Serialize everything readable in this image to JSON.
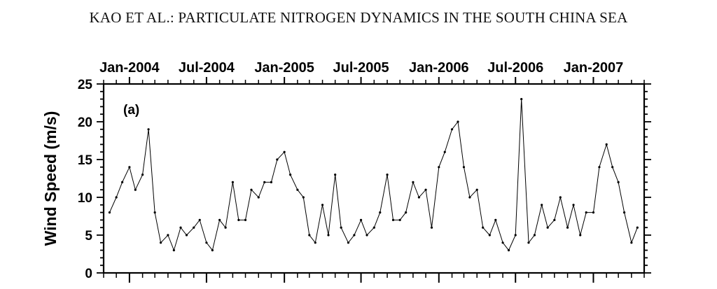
{
  "page_header": "KAO ET AL.: PARTICULATE NITROGEN DYNAMICS IN THE SOUTH CHINA SEA",
  "chart_data": {
    "type": "scatter",
    "panel_label": "(a)",
    "ylabel": "Wind Speed (m/s)",
    "ylim": [
      0,
      25
    ],
    "yticks": [
      0,
      5,
      10,
      15,
      20,
      25
    ],
    "xlim": [
      "2003-11-01",
      "2007-05-01"
    ],
    "top_tick_labels": [
      {
        "label": "Jan-2004",
        "date": "2004-01-01"
      },
      {
        "label": "Jul-2004",
        "date": "2004-07-01"
      },
      {
        "label": "Jan-2005",
        "date": "2005-01-01"
      },
      {
        "label": "Jul-2005",
        "date": "2005-07-01"
      },
      {
        "label": "Jan-2006",
        "date": "2006-01-01"
      },
      {
        "label": "Jul-2006",
        "date": "2006-07-01"
      },
      {
        "label": "Jan-2007",
        "date": "2007-01-01"
      }
    ],
    "series": [
      {
        "style": "points-with-line",
        "color": "#000000",
        "x": [
          "2003-11-15",
          "2003-12-01",
          "2003-12-15",
          "2004-01-01",
          "2004-01-15",
          "2004-02-01",
          "2004-02-15",
          "2004-03-01",
          "2004-03-15",
          "2004-04-01",
          "2004-04-15",
          "2004-05-01",
          "2004-05-15",
          "2004-06-01",
          "2004-06-15",
          "2004-07-01",
          "2004-07-15",
          "2004-08-01",
          "2004-08-15",
          "2004-09-01",
          "2004-09-15",
          "2004-10-01",
          "2004-10-15",
          "2004-11-01",
          "2004-11-15",
          "2004-12-01",
          "2004-12-15",
          "2005-01-01",
          "2005-01-15",
          "2005-02-01",
          "2005-02-15",
          "2005-03-01",
          "2005-03-15",
          "2005-04-01",
          "2005-04-15",
          "2005-05-01",
          "2005-05-15",
          "2005-06-01",
          "2005-06-15",
          "2005-07-01",
          "2005-07-15",
          "2005-08-01",
          "2005-08-15",
          "2005-09-01",
          "2005-09-15",
          "2005-10-01",
          "2005-10-15",
          "2005-11-01",
          "2005-11-15",
          "2005-12-01",
          "2005-12-15",
          "2006-01-01",
          "2006-01-15",
          "2006-02-01",
          "2006-02-15",
          "2006-03-01",
          "2006-03-15",
          "2006-04-01",
          "2006-04-15",
          "2006-05-01",
          "2006-05-15",
          "2006-06-01",
          "2006-06-15",
          "2006-07-01",
          "2006-07-15",
          "2006-08-01",
          "2006-08-15",
          "2006-09-01",
          "2006-09-15",
          "2006-10-01",
          "2006-10-15",
          "2006-11-01",
          "2006-11-15",
          "2006-12-01",
          "2006-12-15",
          "2007-01-01",
          "2007-01-15",
          "2007-02-01",
          "2007-02-15",
          "2007-03-01",
          "2007-03-15",
          "2007-04-01",
          "2007-04-15"
        ],
        "y": [
          8,
          10,
          12,
          14,
          11,
          13,
          19,
          8,
          4,
          5,
          3,
          6,
          5,
          6,
          7,
          4,
          3,
          7,
          6,
          12,
          7,
          7,
          11,
          10,
          12,
          12,
          15,
          16,
          13,
          11,
          10,
          5,
          4,
          9,
          5,
          13,
          6,
          4,
          5,
          7,
          5,
          6,
          8,
          13,
          7,
          7,
          8,
          12,
          10,
          11,
          6,
          14,
          16,
          19,
          20,
          14,
          10,
          11,
          6,
          5,
          7,
          4,
          3,
          5,
          23,
          4,
          5,
          9,
          6,
          7,
          10,
          6,
          9,
          5,
          8,
          8,
          14,
          17,
          14,
          12,
          8,
          4,
          6
        ]
      }
    ]
  }
}
